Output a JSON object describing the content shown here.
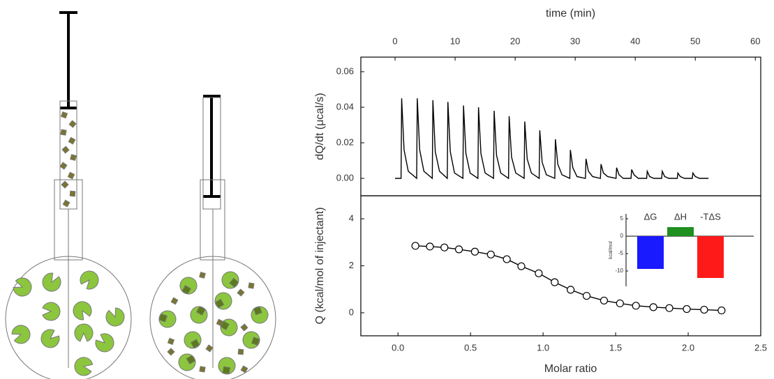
{
  "chart_data": [
    {
      "type": "line",
      "x_axis": "top",
      "x_label": "time (min)",
      "y_label": "dQ/dt (μcal/s)",
      "color": "#000000",
      "x": [
        0.0,
        1.0,
        1.1,
        1.5,
        2.2,
        3.6,
        3.7,
        4.1,
        4.8,
        6.2,
        6.3,
        6.7,
        7.4,
        8.7,
        8.8,
        9.2,
        9.9,
        11.3,
        11.4,
        11.8,
        12.5,
        13.8,
        13.9,
        14.3,
        15.0,
        16.4,
        16.5,
        16.9,
        17.6,
        18.9,
        19.0,
        19.4,
        20.1,
        21.5,
        21.6,
        22.0,
        22.7,
        24.0,
        24.1,
        24.5,
        25.2,
        26.6,
        26.7,
        27.1,
        27.8,
        29.1,
        29.2,
        29.6,
        30.3,
        31.7,
        31.8,
        32.2,
        32.9,
        34.2,
        34.3,
        34.7,
        35.4,
        36.8,
        36.9,
        37.3,
        38.0,
        39.3,
        39.4,
        39.8,
        40.5,
        41.9,
        42.0,
        42.4,
        43.1,
        44.4,
        44.5,
        44.9,
        45.6,
        47.0,
        47.1,
        47.5,
        48.2,
        49.5,
        49.6,
        50.0,
        50.7,
        52.2
      ],
      "values": [
        0,
        0,
        0.045,
        0.016,
        0.004,
        0,
        0.045,
        0.016,
        0.004,
        0,
        0.044,
        0.015,
        0.004,
        0,
        0.043,
        0.015,
        0.003,
        0,
        0.041,
        0.014,
        0.003,
        0,
        0.04,
        0.014,
        0.003,
        0,
        0.038,
        0.013,
        0.003,
        0,
        0.035,
        0.012,
        0.003,
        0,
        0.032,
        0.011,
        0.003,
        0,
        0.027,
        0.009,
        0.002,
        0,
        0.022,
        0.008,
        0.002,
        0,
        0.016,
        0.006,
        0.001,
        0,
        0.011,
        0.004,
        0.001,
        0,
        0.008,
        0.003,
        0.001,
        0,
        0.006,
        0.002,
        0,
        0,
        0.005,
        0.002,
        0,
        0,
        0.004,
        0.001,
        0,
        0,
        0.004,
        0.001,
        0,
        0,
        0.003,
        0.001,
        0,
        0,
        0.003,
        0.001,
        0,
        0
      ],
      "xlim": [
        -5.7,
        60.9
      ],
      "xticks": [
        0,
        10,
        20,
        30,
        40,
        50,
        60
      ],
      "ylim": [
        -0.0098,
        0.0682
      ],
      "yticks": [
        {
          "value": 0,
          "label": "0.00"
        },
        {
          "value": 0.02,
          "label": "0.02"
        },
        {
          "value": 0.04,
          "label": "0.04"
        },
        {
          "value": 0.06,
          "label": "0.06"
        }
      ]
    },
    {
      "type": "line",
      "marker": "circle",
      "x_axis": "bottom",
      "x_label": "Molar ratio",
      "y_label": "Q (kcal/mol of injectant)",
      "color": "#000000",
      "x": [
        0.12,
        0.22,
        0.32,
        0.42,
        0.53,
        0.64,
        0.75,
        0.85,
        0.97,
        1.08,
        1.19,
        1.3,
        1.42,
        1.53,
        1.64,
        1.76,
        1.87,
        1.99,
        2.11,
        2.23
      ],
      "values": [
        2.85,
        2.82,
        2.78,
        2.7,
        2.6,
        2.48,
        2.28,
        1.98,
        1.68,
        1.3,
        0.98,
        0.72,
        0.52,
        0.4,
        0.3,
        0.24,
        0.2,
        0.16,
        0.13,
        0.1
      ],
      "xlim": [
        -0.256,
        2.5
      ],
      "xticks": [
        {
          "value": 0,
          "label": "0.0"
        },
        0.5,
        {
          "value": 1,
          "label": "1.0"
        },
        1.5,
        {
          "value": 2,
          "label": "2.0"
        },
        2.5
      ],
      "ylim": [
        -0.98,
        4.98
      ],
      "yticks": [
        0,
        2,
        4
      ]
    },
    {
      "type": "bar",
      "y_label": "kcal/mol",
      "categories": [
        "ΔG",
        "ΔH",
        "-TΔS"
      ],
      "values": [
        -9.4,
        2.6,
        -12.0
      ],
      "colors": [
        "#1a1aff",
        "#1f8f1f",
        "#ff1a1a"
      ],
      "ylim": [
        -14.4,
        6.4
      ],
      "yticks": [
        -10,
        -5,
        0,
        5
      ]
    }
  ]
}
